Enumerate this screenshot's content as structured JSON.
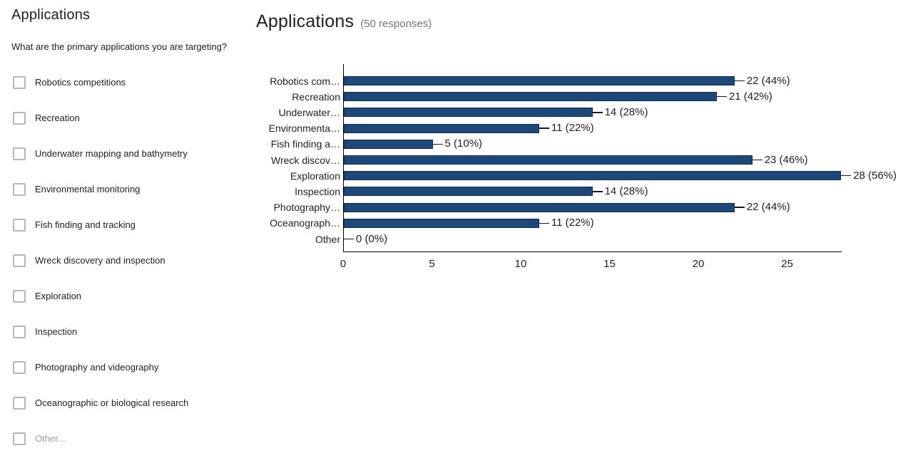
{
  "left_panel": {
    "title": "Applications",
    "question": "What are the primary applications you are targeting?",
    "options": [
      {
        "label": "Robotics competitions",
        "muted": false
      },
      {
        "label": "Recreation",
        "muted": false
      },
      {
        "label": "Underwater mapping and bathymetry",
        "muted": false
      },
      {
        "label": "Environmental monitoring",
        "muted": false
      },
      {
        "label": "Fish finding and tracking",
        "muted": false
      },
      {
        "label": "Wreck discovery and inspection",
        "muted": false
      },
      {
        "label": "Exploration",
        "muted": false
      },
      {
        "label": "Inspection",
        "muted": false
      },
      {
        "label": "Photography and videography",
        "muted": false
      },
      {
        "label": "Oceanographic or biological research",
        "muted": false
      },
      {
        "label": "Other...",
        "muted": true
      }
    ]
  },
  "chart_panel": {
    "title": "Applications",
    "responses_label": "(50 responses)"
  },
  "chart_data": {
    "type": "bar",
    "orientation": "horizontal",
    "title": "Applications (50 responses)",
    "categories": [
      "Robotics com…",
      "Recreation",
      "Underwater…",
      "Environmenta…",
      "Fish finding a…",
      "Wreck discov…",
      "Exploration",
      "Inspection",
      "Photography…",
      "Oceanograph…",
      "Other"
    ],
    "values": [
      22,
      21,
      14,
      11,
      5,
      23,
      28,
      14,
      22,
      11,
      0
    ],
    "value_labels": [
      "22 (44%)",
      "21 (42%)",
      "14 (28%)",
      "11 (22%)",
      "5 (10%)",
      "23 (46%)",
      "28 (56%)",
      "14 (28%)",
      "22 (44%)",
      "11 (22%)",
      "0 (0%)"
    ],
    "x_ticks": [
      "0",
      "5",
      "10",
      "15",
      "20",
      "25"
    ],
    "xlim": [
      0,
      28.05
    ],
    "xlabel": "",
    "ylabel": "",
    "grid": false,
    "legend": null,
    "bar_color": "#1e4878",
    "bar_border_color": "#122a52"
  }
}
